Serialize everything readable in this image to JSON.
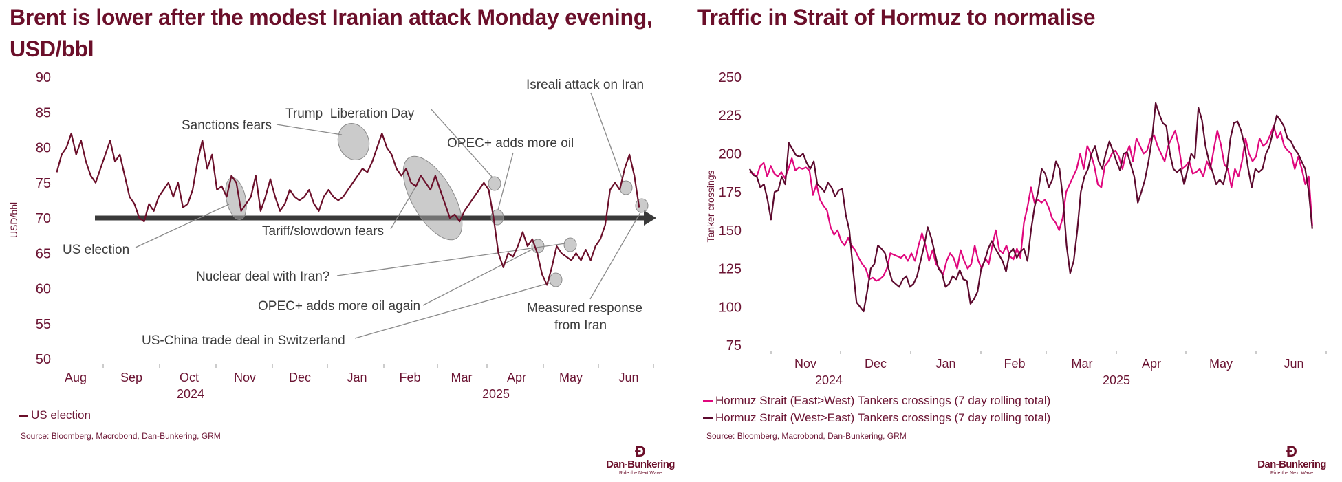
{
  "left": {
    "title": "Brent is lower after the modest Iranian attack Monday evening, USD/bbl",
    "legend": "US election",
    "source": "Source: Bloomberg, Macrobond, Dan-Bunkering, GRM",
    "annotations": {
      "israeli": "Isreali attack on Iran",
      "trump": "Trump  Liberation Day",
      "sanctions": "Sanctions fears",
      "opec": "OPEC+ adds more oil",
      "tariff": "Tariff/slowdown fears",
      "election": "US election",
      "nuclear": "Nuclear deal with Iran?",
      "opec_again": "OPEC+ adds more oil again",
      "measured1": "Measured response",
      "measured2": "from Iran",
      "uschina": "US-China trade deal in Switzerland"
    }
  },
  "right": {
    "title": "Traffic in Strait of Hormuz to normalise",
    "source": "Source: Bloomberg, Macrobond, Dan-Bunkering, GRM"
  },
  "logo": {
    "name": "Dan-Bunkering",
    "tagline": "Ride the Next Wave",
    "mark": "Ꝺ"
  },
  "chart_data": [
    {
      "type": "line",
      "title": "Brent is lower after the modest Iranian attack Monday evening, USD/bbl",
      "ylabel": "USD/bbl",
      "ylim": [
        50,
        90
      ],
      "yticks": [
        "90",
        "85",
        "80",
        "75",
        "70",
        "65",
        "60",
        "55",
        "50"
      ],
      "xticks": [
        "Aug",
        "Sep",
        "Oct",
        "Nov",
        "Dec",
        "Jan",
        "Feb",
        "Mar",
        "Apr",
        "May",
        "Jun"
      ],
      "years": [
        "2024",
        "2025"
      ],
      "color": "#6b0f2a",
      "series": [
        {
          "name": "US election",
          "start": "2024-08-05",
          "end": "2025-06-21",
          "values": [
            76.5,
            79,
            80,
            82,
            79,
            81,
            78,
            76,
            75,
            77,
            79,
            81,
            78,
            79,
            76,
            73,
            72,
            70,
            69.5,
            72,
            71,
            73,
            74,
            75,
            73,
            75,
            71.5,
            72,
            74,
            78,
            81,
            77,
            79,
            74,
            74.5,
            73,
            76,
            75,
            71,
            72,
            73,
            76,
            71,
            73,
            75.5,
            73,
            71,
            72,
            74,
            73,
            72.5,
            73,
            74,
            72,
            71,
            73,
            74,
            73,
            72.5,
            73,
            74,
            75,
            76,
            77,
            76.5,
            78,
            80,
            82,
            80,
            79,
            77,
            76,
            77,
            75,
            74.5,
            76,
            75,
            74,
            76,
            74,
            72,
            70,
            70.5,
            69.5,
            71,
            72,
            73,
            74,
            75,
            74,
            70,
            65,
            63,
            65,
            64.5,
            66,
            68,
            66,
            67,
            65,
            62,
            60.5,
            63,
            66,
            65,
            64.5,
            64,
            65,
            64,
            65.5,
            64,
            66,
            67,
            69,
            74,
            75,
            74,
            77,
            79,
            76,
            71.5
          ]
        }
      ],
      "annotations": [
        "Isreali attack on Iran",
        "Trump  Liberation Day",
        "Sanctions fears",
        "OPEC+ adds more oil",
        "Tariff/slowdown fears",
        "US election",
        "Nuclear deal with Iran?",
        "OPEC+ adds more oil again",
        "Measured response from Iran",
        "US-China trade deal in Switzerland"
      ],
      "reference_line": 70
    },
    {
      "type": "line",
      "title": "Traffic in Strait of Hormuz to normalise",
      "ylabel": "Tanker crossings",
      "ylim": [
        75,
        250
      ],
      "yticks": [
        "250",
        "225",
        "200",
        "175",
        "150",
        "125",
        "100",
        "75"
      ],
      "xticks": [
        "Nov",
        "Dec",
        "Jan",
        "Feb",
        "Mar",
        "Apr",
        "May",
        "Jun"
      ],
      "years": [
        "2024",
        "2025"
      ],
      "legend_position": "bottom-left",
      "series": [
        {
          "name": "Hormuz Strait (East>West) Tankers crossings (7 day rolling total)",
          "color": "#e0077d",
          "start": "2024-10-22",
          "end": "2025-06-21",
          "values": [
            188,
            187,
            185,
            192,
            194,
            185,
            192,
            187,
            185,
            188,
            184,
            190,
            197,
            189,
            191,
            190,
            191,
            189,
            173,
            180,
            170,
            166,
            163,
            152,
            147,
            150,
            143,
            140,
            145,
            140,
            137,
            132,
            128,
            125,
            118,
            119,
            117,
            118,
            120,
            125,
            135,
            134,
            133,
            132,
            134,
            130,
            135,
            130,
            140,
            148,
            140,
            130,
            137,
            128,
            125,
            121,
            130,
            135,
            132,
            125,
            137,
            130,
            125,
            128,
            140,
            130,
            125,
            132,
            128,
            140,
            150,
            137,
            135,
            140,
            133,
            131,
            138,
            132,
            155,
            165,
            178,
            168,
            170,
            168,
            170,
            165,
            158,
            155,
            150,
            158,
            175,
            180,
            185,
            190,
            200,
            190,
            205,
            200,
            192,
            180,
            178,
            192,
            195,
            200,
            202,
            198,
            190,
            200,
            205,
            195,
            210,
            205,
            200,
            202,
            210,
            212,
            205,
            200,
            195,
            205,
            210,
            215,
            205,
            190,
            192,
            195,
            187,
            188,
            190,
            185,
            195,
            190,
            203,
            215,
            206,
            193,
            190,
            178,
            190,
            185,
            195,
            210,
            200,
            195,
            198,
            210,
            205,
            207,
            212,
            218,
            210,
            214,
            205,
            202,
            200,
            190,
            198,
            190,
            180,
            185,
            153
          ]
        },
        {
          "name": "Hormuz Strait (West>East) Tankers crossings (7 day rolling total)",
          "color": "#5c0a2e",
          "start": "2024-10-22",
          "end": "2025-06-21",
          "values": [
            190,
            186,
            185,
            178,
            180,
            170,
            157,
            175,
            176,
            185,
            180,
            207,
            203,
            199,
            198,
            200,
            194,
            190,
            195,
            180,
            178,
            175,
            181,
            178,
            172,
            176,
            177,
            160,
            150,
            125,
            103,
            100,
            97,
            110,
            125,
            128,
            140,
            138,
            135,
            125,
            117,
            115,
            113,
            118,
            120,
            113,
            115,
            120,
            130,
            140,
            152,
            145,
            135,
            125,
            122,
            113,
            115,
            120,
            118,
            124,
            118,
            117,
            102,
            105,
            110,
            125,
            130,
            138,
            143,
            138,
            134,
            130,
            123,
            135,
            138,
            132,
            136,
            138,
            130,
            150,
            165,
            175,
            190,
            187,
            178,
            183,
            195,
            190,
            170,
            140,
            122,
            130,
            150,
            175,
            185,
            190,
            200,
            205,
            195,
            190,
            200,
            208,
            202,
            195,
            189,
            200,
            201,
            193,
            185,
            168,
            175,
            183,
            195,
            210,
            233,
            226,
            220,
            218,
            200,
            190,
            188,
            190,
            180,
            190,
            200,
            197,
            230,
            222,
            205,
            195,
            188,
            180,
            183,
            180,
            190,
            210,
            220,
            221,
            215,
            205,
            190,
            178,
            190,
            188,
            190,
            200,
            205,
            215,
            225,
            222,
            218,
            210,
            208,
            203,
            200,
            195,
            190,
            175,
            151
          ]
        }
      ]
    }
  ]
}
